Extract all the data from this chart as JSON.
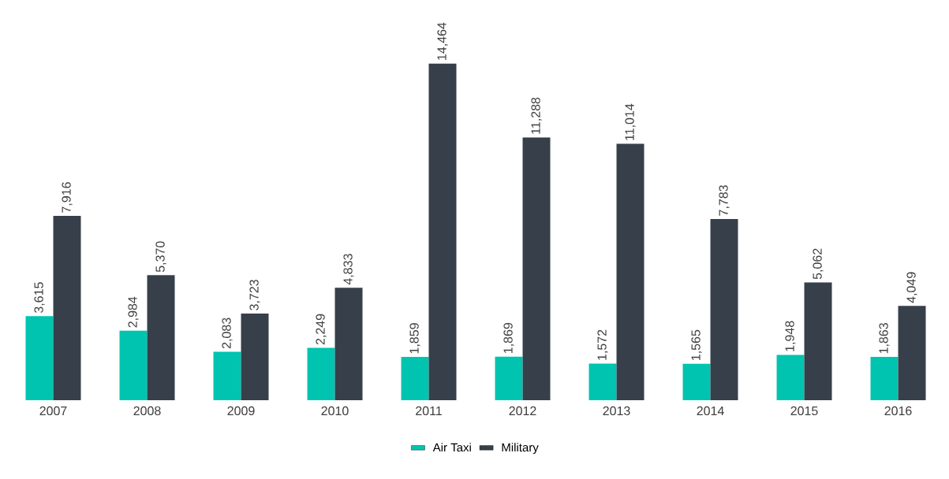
{
  "chart_data": {
    "type": "bar",
    "categories": [
      "2007",
      "2008",
      "2009",
      "2010",
      "2011",
      "2012",
      "2013",
      "2014",
      "2015",
      "2016"
    ],
    "series": [
      {
        "name": "Air Taxi",
        "color": "#00c4b0",
        "values": [
          3615,
          2984,
          2083,
          2249,
          1859,
          1869,
          1572,
          1565,
          1948,
          1863
        ],
        "value_labels": [
          "3,615",
          "2,984",
          "2,083",
          "2,249",
          "1,859",
          "1,869",
          "1,572",
          "1,565",
          "1,948",
          "1,863"
        ]
      },
      {
        "name": "Military",
        "color": "#37404a",
        "values": [
          7916,
          5370,
          3723,
          4833,
          14464,
          11288,
          11014,
          7783,
          5062,
          4049
        ],
        "value_labels": [
          "7,916",
          "5,370",
          "3,723",
          "4,833",
          "14,464",
          "11,288",
          "11,014",
          "7,783",
          "5,062",
          "4,049"
        ]
      }
    ],
    "legend": "bottom"
  }
}
